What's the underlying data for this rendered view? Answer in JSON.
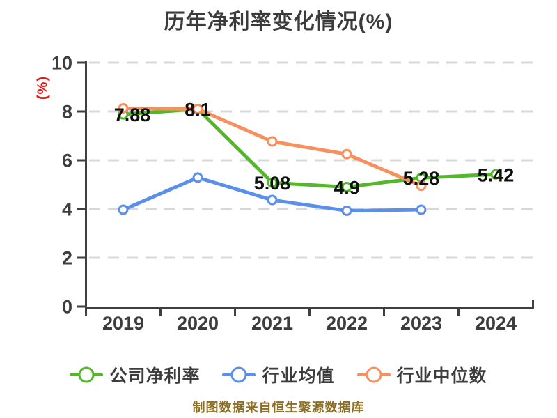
{
  "chart_data": {
    "type": "line",
    "title": "历年净利率变化情况(%)",
    "ylabel": "(%)",
    "footnote": "制图数据来自恒生聚源数据库",
    "categories": [
      "2019",
      "2020",
      "2021",
      "2022",
      "2023",
      "2024"
    ],
    "ylim": [
      0,
      10
    ],
    "yticks": [
      0,
      2,
      4,
      6,
      8,
      10
    ],
    "grid": "horizontal-dashed",
    "legend_position": "bottom",
    "series": [
      {
        "name": "公司净利率",
        "color": "#53b72a",
        "marker": "open-circle",
        "values": [
          7.88,
          8.1,
          5.08,
          4.9,
          5.28,
          5.42
        ],
        "labels": [
          "7.88",
          "8.1",
          "5.08",
          "4.9",
          "5.28",
          "5.42"
        ]
      },
      {
        "name": "行业均值",
        "color": "#5a8fec",
        "marker": "open-circle",
        "values": [
          3.97,
          5.29,
          4.37,
          3.93,
          3.97,
          null
        ],
        "labels": null
      },
      {
        "name": "行业中位数",
        "color": "#f6905f",
        "marker": "open-circle",
        "values": [
          8.13,
          8.1,
          6.77,
          6.25,
          4.95,
          null
        ],
        "labels": null
      }
    ]
  },
  "styles": {
    "background": "#ffffff",
    "axis_color": "#3f3f3f",
    "grid_color": "#d8d8d8",
    "tick_label_color": "#3d3d3d",
    "data_label_color": "#0f0f0f",
    "title_color": "#3b3b3b",
    "ylabel_color": "#ee1111",
    "footnote_color": "#8c6e23"
  }
}
